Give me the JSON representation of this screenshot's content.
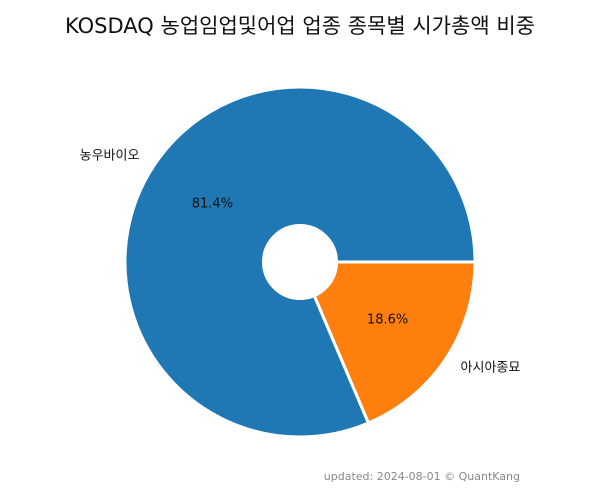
{
  "chart_data": {
    "type": "pie",
    "title": "KOSDAQ 농업임업및어업 업종 종목별 시가총액 비중",
    "categories": [
      "농우바이오",
      "아시아종묘"
    ],
    "values": [
      81.4,
      18.6
    ],
    "value_labels": [
      "81.4%",
      "18.6%"
    ],
    "colors": [
      "#1f77b4",
      "#ff7f0e"
    ],
    "donut": true,
    "legend": "none"
  },
  "footer": {
    "note": "updated: 2024-08-01 © QuantKang"
  }
}
